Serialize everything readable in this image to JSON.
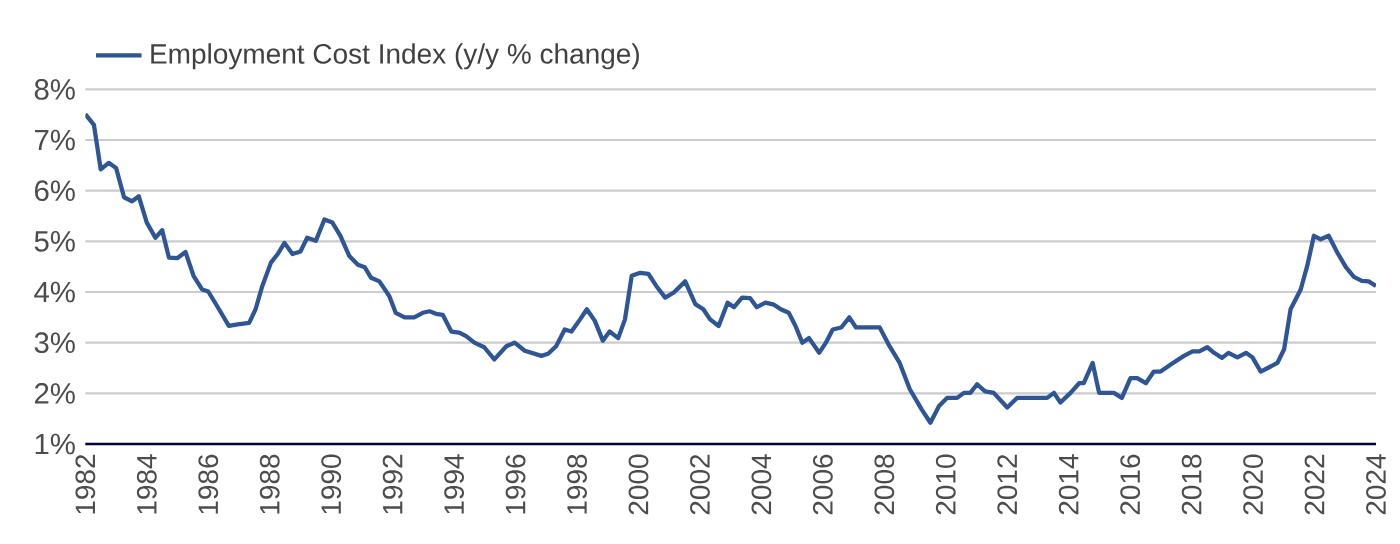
{
  "chart_data": {
    "type": "line",
    "x": [
      1982.0,
      1982.28,
      1982.5,
      1982.76,
      1983.0,
      1983.26,
      1983.52,
      1983.74,
      1984.0,
      1984.28,
      1984.5,
      1984.72,
      1985.0,
      1985.26,
      1985.52,
      1985.8,
      1986.0,
      1986.35,
      1986.67,
      1986.96,
      1987.33,
      1987.54,
      1987.76,
      1988.04,
      1988.26,
      1988.48,
      1988.74,
      1989.0,
      1989.22,
      1989.5,
      1989.78,
      1990.04,
      1990.3,
      1990.59,
      1990.87,
      1991.09,
      1991.3,
      1991.57,
      1991.89,
      1992.1,
      1992.39,
      1992.7,
      1992.98,
      1993.2,
      1993.41,
      1993.63,
      1993.91,
      1994.17,
      1994.39,
      1994.66,
      1994.98,
      1995.31,
      1995.7,
      1995.97,
      1996.3,
      1996.84,
      1997.06,
      1997.32,
      1997.6,
      1997.82,
      1998.1,
      1998.32,
      1998.58,
      1998.84,
      1999.06,
      1999.34,
      1999.56,
      1999.78,
      2000.06,
      2000.32,
      2000.58,
      2000.87,
      2001.15,
      2001.52,
      2001.85,
      2002.11,
      2002.33,
      2002.61,
      2002.9,
      2003.11,
      2003.37,
      2003.63,
      2003.85,
      2004.13,
      2004.41,
      2004.63,
      2004.89,
      2005.11,
      2005.33,
      2005.55,
      2005.88,
      2006.1,
      2006.32,
      2006.6,
      2006.86,
      2007.08,
      2007.85,
      2008.17,
      2008.5,
      2008.83,
      2009.22,
      2009.5,
      2009.78,
      2010.04,
      2010.37,
      2010.59,
      2010.8,
      2011.02,
      2011.28,
      2011.56,
      2012.0,
      2012.32,
      2013.3,
      2013.52,
      2013.73,
      2014.06,
      2014.34,
      2014.49,
      2014.78,
      2014.99,
      2015.47,
      2015.73,
      2016.01,
      2016.23,
      2016.51,
      2016.77,
      2016.99,
      2017.32,
      2017.75,
      2018.03,
      2018.25,
      2018.51,
      2018.73,
      2018.99,
      2019.2,
      2019.49,
      2019.77,
      2019.98,
      2020.25,
      2020.51,
      2020.79,
      2021.01,
      2021.22,
      2021.55,
      2021.76,
      2021.98,
      2022.2,
      2022.46,
      2022.74,
      2023.02,
      2023.28,
      2023.54,
      2023.76,
      2024.0
    ],
    "series": [
      {
        "name": "Employment Cost Index (y/y % change)",
        "color": "#2e5596",
        "values": [
          7.51,
          7.3,
          6.42,
          6.55,
          6.45,
          5.87,
          5.79,
          5.89,
          5.37,
          5.07,
          5.22,
          4.68,
          4.67,
          4.79,
          4.32,
          4.05,
          4.01,
          3.66,
          3.33,
          3.36,
          3.39,
          3.66,
          4.12,
          4.58,
          4.75,
          4.97,
          4.75,
          4.8,
          5.07,
          5.01,
          5.43,
          5.37,
          5.11,
          4.71,
          4.54,
          4.49,
          4.28,
          4.21,
          3.92,
          3.59,
          3.5,
          3.5,
          3.59,
          3.62,
          3.57,
          3.55,
          3.22,
          3.2,
          3.13,
          3.0,
          2.91,
          2.67,
          2.93,
          3.0,
          2.84,
          2.74,
          2.78,
          2.93,
          3.26,
          3.22,
          3.46,
          3.66,
          3.43,
          3.04,
          3.22,
          3.09,
          3.46,
          4.32,
          4.38,
          4.36,
          4.12,
          3.89,
          3.99,
          4.21,
          3.76,
          3.66,
          3.46,
          3.33,
          3.79,
          3.7,
          3.89,
          3.88,
          3.7,
          3.79,
          3.75,
          3.66,
          3.59,
          3.33,
          3.0,
          3.09,
          2.8,
          3.0,
          3.26,
          3.3,
          3.5,
          3.3,
          3.3,
          2.93,
          2.6,
          2.08,
          1.68,
          1.42,
          1.75,
          1.91,
          1.91,
          2.01,
          2.01,
          2.18,
          2.04,
          2.01,
          1.72,
          1.91,
          1.91,
          2.01,
          1.82,
          2.01,
          2.2,
          2.2,
          2.6,
          2.01,
          2.01,
          1.91,
          2.3,
          2.3,
          2.2,
          2.43,
          2.43,
          2.57,
          2.74,
          2.83,
          2.83,
          2.91,
          2.8,
          2.7,
          2.8,
          2.71,
          2.8,
          2.71,
          2.43,
          2.51,
          2.6,
          2.87,
          3.66,
          4.05,
          4.51,
          5.11,
          5.04,
          5.11,
          4.78,
          4.49,
          4.3,
          4.22,
          4.21,
          4.12
        ]
      }
    ],
    "xlim": [
      1982,
      2024
    ],
    "xticks": [
      1982,
      1984,
      1986,
      1988,
      1990,
      1992,
      1994,
      1996,
      1998,
      2000,
      2002,
      2004,
      2006,
      2008,
      2010,
      2012,
      2014,
      2016,
      2018,
      2020,
      2022,
      2024
    ],
    "ylim": [
      1,
      8
    ],
    "yticks": [
      {
        "value": 1,
        "label": "1%"
      },
      {
        "value": 2,
        "label": "2%"
      },
      {
        "value": 3,
        "label": "3%"
      },
      {
        "value": 4,
        "label": "4%"
      },
      {
        "value": 5,
        "label": "5%"
      },
      {
        "value": 6,
        "label": "6%"
      },
      {
        "value": 7,
        "label": "7%"
      },
      {
        "value": 8,
        "label": "8%"
      }
    ],
    "grid": "y",
    "legend": "top left",
    "marker": "none",
    "line_style": "solid"
  }
}
